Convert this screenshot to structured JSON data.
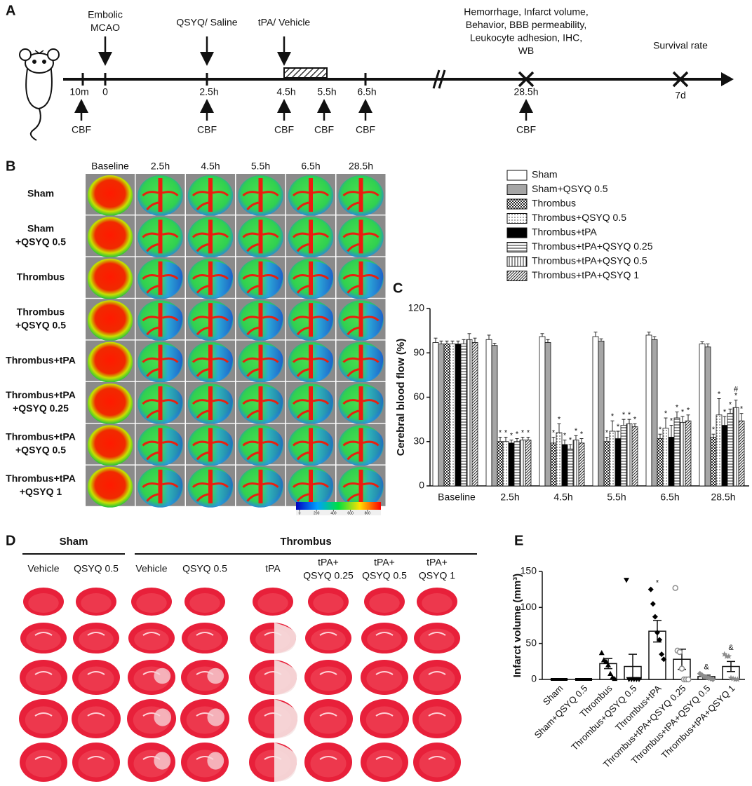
{
  "panel_a": {
    "panel_label": "A",
    "top_labels": [
      [
        "Embolic",
        "MCAO"
      ],
      [
        "QSYQ/ Saline"
      ],
      [
        "tPA/ Vehicle"
      ],
      [
        "Hemorrhage, Infarct volume,",
        "Behavior, BBB permeability,",
        "Leukocyte adhesion, IHC,",
        "WB"
      ],
      [
        "Survival rate"
      ]
    ],
    "times": [
      "10m",
      "0",
      "2.5h",
      "4.5h",
      "5.5h",
      "6.5h",
      "28.5h",
      "7d"
    ],
    "time_colors": [
      "#111111",
      "#111111",
      "#d42a20",
      "#d42a20",
      "#111111",
      "#111111",
      "#111111",
      "#111111"
    ],
    "measure_labels": [
      "CBF",
      "CBF",
      "CBF",
      "CBF",
      "CBF",
      "CBF"
    ]
  },
  "panel_b": {
    "panel_label": "B",
    "columns": [
      "Baseline",
      "2.5h",
      "4.5h",
      "5.5h",
      "6.5h",
      "28.5h"
    ],
    "rows": [
      [
        "Sham"
      ],
      [
        "Sham",
        "+QSYQ 0.5"
      ],
      [
        "Thrombus"
      ],
      [
        "Thrombus",
        "+QSYQ 0.5"
      ],
      [
        "Thrombus+tPA"
      ],
      [
        "Thrombus+tPA",
        "+QSYQ 0.25"
      ],
      [
        "Thrombus+tPA",
        "+QSYQ 0.5"
      ],
      [
        "Thrombus+tPA",
        "+QSYQ 1"
      ]
    ],
    "colorbar_ticks": [
      0,
      200,
      400,
      600,
      800
    ]
  },
  "panel_d": {
    "panel_label": "D",
    "groups": [
      "Sham",
      "Thrombus"
    ],
    "columns": [
      [
        "Vehicle"
      ],
      [
        "QSYQ 0.5"
      ],
      [
        "Vehicle"
      ],
      [
        "QSYQ 0.5"
      ],
      [
        "tPA"
      ],
      [
        "tPA+",
        "QSYQ 0.25"
      ],
      [
        "tPA+",
        "QSYQ 0.5"
      ],
      [
        "tPA+",
        "QSYQ 1"
      ]
    ]
  },
  "chart_data": [
    {
      "panel_label": "C",
      "type": "bar",
      "ylabel": "Cerebral blood flow (%)",
      "categories": [
        "Baseline",
        "2.5h",
        "4.5h",
        "5.5h",
        "6.5h",
        "28.5h"
      ],
      "ylim": [
        0,
        120
      ],
      "yticks": [
        0,
        30,
        60,
        90,
        120
      ],
      "series": [
        {
          "name": "Sham",
          "color": "#ffffff",
          "pattern": "solid",
          "values": [
            97,
            99,
            101,
            101,
            102,
            96
          ],
          "errors": [
            3,
            3,
            2,
            3,
            2,
            1.5
          ],
          "markers": [
            null,
            null,
            null,
            null,
            null,
            null
          ]
        },
        {
          "name": "Sham+QSYQ 0.5",
          "color": "#a6a6a6",
          "pattern": "solid",
          "values": [
            96,
            95,
            97,
            98,
            99,
            94
          ],
          "errors": [
            2,
            1.5,
            2,
            1.5,
            2,
            2
          ],
          "markers": [
            null,
            null,
            null,
            null,
            null,
            null
          ]
        },
        {
          "name": "Thrombus",
          "color": "#222222",
          "pattern": "checker",
          "values": [
            96,
            30,
            29,
            30,
            32,
            33
          ],
          "errors": [
            2,
            3,
            4,
            3,
            3,
            2
          ],
          "markers": [
            null,
            "*",
            "*",
            "*",
            "*",
            "*"
          ]
        },
        {
          "name": "Thrombus+QSYQ 0.5",
          "color": "#222222",
          "pattern": "dots",
          "values": [
            96,
            30,
            36,
            37,
            39,
            48
          ],
          "errors": [
            2,
            3,
            6,
            7,
            7,
            11
          ],
          "markers": [
            null,
            "*",
            "*",
            "*",
            "*",
            "*"
          ]
        },
        {
          "name": "Thrombus+tPA",
          "color": "#000000",
          "pattern": "solid",
          "values": [
            96,
            29,
            28,
            32,
            33,
            41
          ],
          "errors": [
            2,
            2,
            3,
            5,
            8,
            6
          ],
          "markers": [
            null,
            "*",
            "*",
            "*",
            "*",
            "*"
          ]
        },
        {
          "name": "Thrombus+tPA+QSYQ 0.25",
          "color": "#222222",
          "pattern": "hlines",
          "values": [
            96,
            30,
            25,
            41,
            46,
            49
          ],
          "errors": [
            3,
            2,
            3,
            4,
            4,
            3
          ],
          "markers": [
            null,
            "*",
            "*",
            "*",
            "*",
            "*"
          ]
        },
        {
          "name": "Thrombus+tPA+QSYQ 0.5",
          "color": "#222222",
          "pattern": "vlines",
          "values": [
            99,
            31,
            31,
            42,
            43,
            53
          ],
          "errors": [
            4,
            2,
            3,
            3,
            4,
            5
          ],
          "markers": [
            null,
            "*",
            "*",
            "*",
            "*",
            [
              "#",
              "*"
            ]
          ]
        },
        {
          "name": "Thrombus+tPA+QSYQ 1",
          "color": "#222222",
          "pattern": "diag",
          "values": [
            97,
            31,
            29,
            40,
            44,
            44
          ],
          "errors": [
            3,
            2,
            3,
            2,
            4,
            5
          ],
          "markers": [
            null,
            "*",
            "*",
            "*",
            "*",
            "*"
          ]
        }
      ]
    },
    {
      "panel_label": "E",
      "type": "bar_scatter",
      "ylabel": "Infarct volume (mm³)",
      "categories": [
        "Sham",
        "Sham+QSYQ 0.5",
        "Thrombus",
        "Thrombus+QSYQ 0.5",
        "Thrombus+tPA",
        "Thrombus+tPA+QSYQ 0.25",
        "Thrombus+tPA+QSYQ 0.5",
        "Thrombus+tPA+QSYQ 1"
      ],
      "values": [
        0,
        0,
        22,
        18,
        67,
        28,
        4,
        18
      ],
      "errors": [
        0,
        0,
        7,
        17,
        15,
        14,
        2,
        7
      ],
      "bar_color": "#ffffff",
      "points": [
        [
          0,
          0,
          0,
          0,
          0,
          0
        ],
        [
          0,
          0,
          0,
          0,
          0,
          0
        ],
        [
          37,
          27,
          25,
          20,
          8,
          3,
          1
        ],
        [
          138,
          0,
          0,
          0,
          0,
          0
        ],
        [
          125,
          105,
          87,
          65,
          55,
          35,
          28
        ],
        [
          127,
          40,
          38,
          15,
          0,
          0,
          0
        ],
        [
          8,
          6,
          4,
          3,
          2,
          1,
          0
        ],
        [
          35,
          32,
          32,
          2,
          1,
          0,
          0
        ]
      ],
      "point_shapes": [
        "square",
        "square",
        "triangle",
        "inverted-triangle",
        "diamond",
        "open-circle",
        "diamond",
        "star"
      ],
      "point_colors": [
        "#000000",
        "#000000",
        "#000000",
        "#000000",
        "#000000",
        "#8c8c8c",
        "#8c8c8c",
        "#8c8c8c"
      ],
      "markers": [
        null,
        null,
        null,
        null,
        "*",
        null,
        "&",
        "&"
      ],
      "ylim": [
        0,
        150
      ],
      "yticks": [
        0,
        50,
        100,
        150
      ]
    }
  ]
}
